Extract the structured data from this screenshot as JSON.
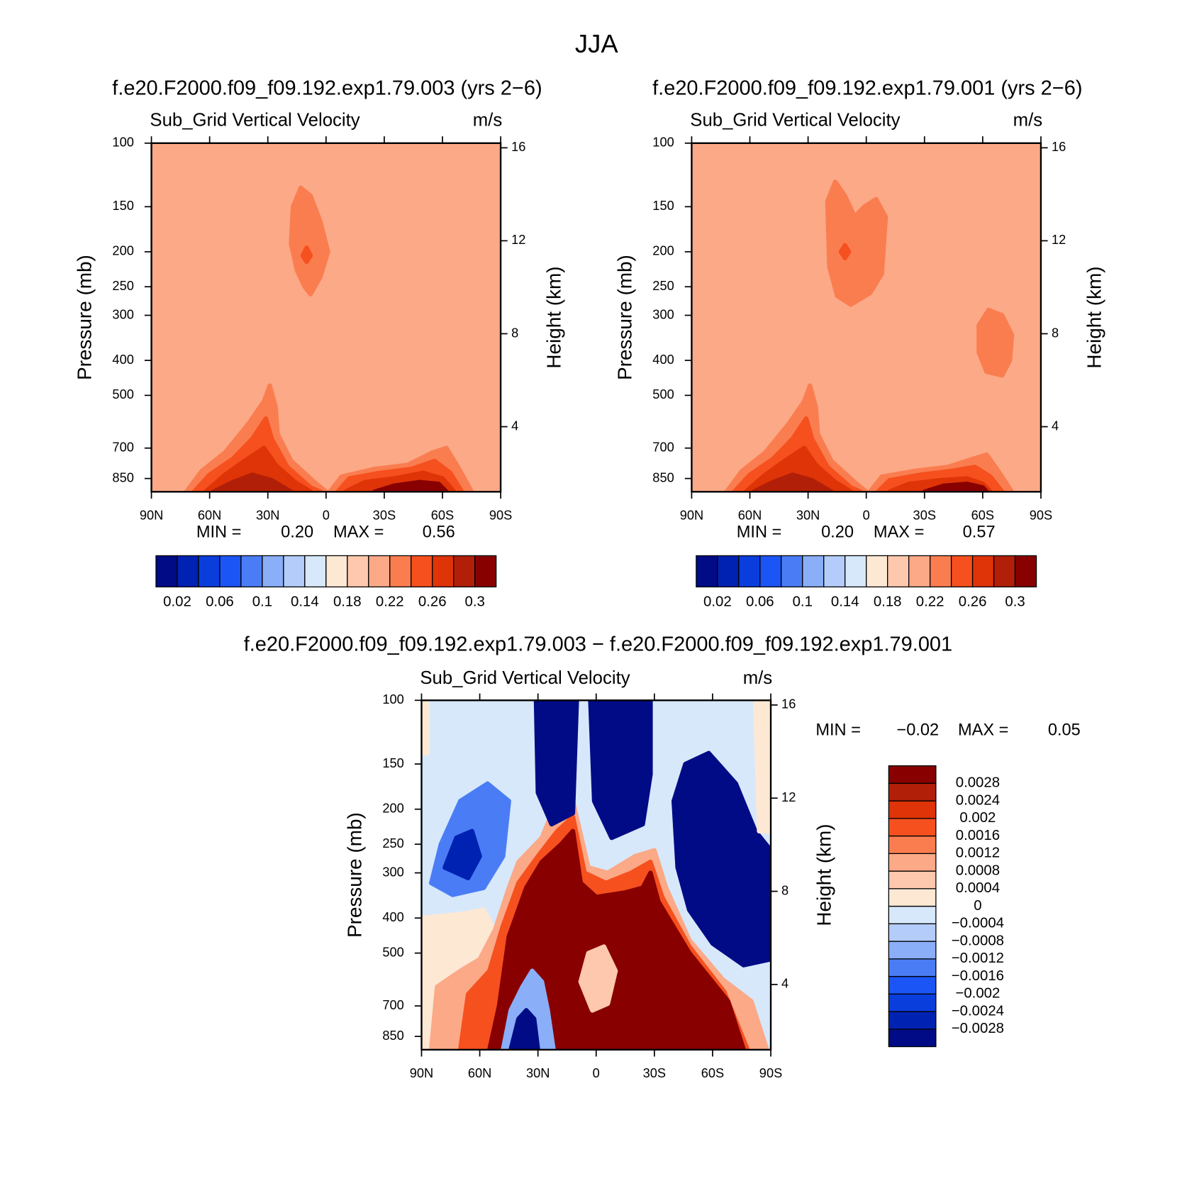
{
  "title": "JJA",
  "chart_data": [
    {
      "type": "contour",
      "title": "f.e20.F2000.f09_f09.192.exp1.79.003 (yrs 2−6)",
      "subtitle": "Sub_Grid Vertical Velocity",
      "units": "m/s",
      "ylabel": "Pressure (mb)",
      "y2label": "Height (km)",
      "xlim": [
        90,
        -90
      ],
      "xticks": [
        {
          "value": 90,
          "label": "90N"
        },
        {
          "value": 60,
          "label": "60N"
        },
        {
          "value": 30,
          "label": "30N"
        },
        0,
        {
          "value": -30,
          "label": "30S"
        },
        {
          "value": -60,
          "label": "60S"
        },
        {
          "value": -90,
          "label": "90S"
        }
      ],
      "ylim": [
        925,
        100
      ],
      "ylog": true,
      "yticks": [
        100,
        150,
        200,
        250,
        300,
        400,
        500,
        700,
        850
      ],
      "y2lim": [
        1.2,
        16.2
      ],
      "y2ticks": [
        4,
        8,
        12,
        16
      ],
      "min_label": "MIN =",
      "min": {
        "value": 0.2,
        "label": "0.20"
      },
      "max_label": "MAX =",
      "max": 0.56,
      "colorbar": {
        "orientation": "horizontal",
        "levels": [
          0.02,
          null,
          0.06,
          null,
          {
            "value": 0.1,
            "label": "0.1"
          },
          null,
          0.14,
          null,
          0.18,
          null,
          0.22,
          null,
          0.26,
          null,
          {
            "value": 0.3,
            "label": "0.3"
          }
        ],
        "colors": [
          "#010b86",
          "#0022b2",
          "#0a3edc",
          "#1c55f5",
          "#4a7df5",
          "#8aaef8",
          "#b4ccfa",
          "#d7e8fb",
          "#fde8d4",
          "#fdc8ad",
          "#fba987",
          "#fa7d50",
          "#f5501e",
          "#de3407",
          "#b11f08",
          "#880000"
        ]
      }
    },
    {
      "type": "contour",
      "title": "f.e20.F2000.f09_f09.192.exp1.79.001 (yrs 2−6)",
      "subtitle": "Sub_Grid Vertical Velocity",
      "units": "m/s",
      "ylabel": "Pressure (mb)",
      "y2label": "Height (km)",
      "xlim": [
        90,
        -90
      ],
      "xticks": [
        {
          "value": 90,
          "label": "90N"
        },
        {
          "value": 60,
          "label": "60N"
        },
        {
          "value": 30,
          "label": "30N"
        },
        0,
        {
          "value": -30,
          "label": "30S"
        },
        {
          "value": -60,
          "label": "60S"
        },
        {
          "value": -90,
          "label": "90S"
        }
      ],
      "ylim": [
        925,
        100
      ],
      "ylog": true,
      "yticks": [
        100,
        150,
        200,
        250,
        300,
        400,
        500,
        700,
        850
      ],
      "y2lim": [
        1.2,
        16.2
      ],
      "y2ticks": [
        4,
        8,
        12,
        16
      ],
      "min_label": "MIN =",
      "min": {
        "value": 0.2,
        "label": "0.20"
      },
      "max_label": "MAX =",
      "max": 0.57,
      "colorbar": {
        "orientation": "horizontal",
        "levels": [
          0.02,
          null,
          0.06,
          null,
          {
            "value": 0.1,
            "label": "0.1"
          },
          null,
          0.14,
          null,
          0.18,
          null,
          0.22,
          null,
          0.26,
          null,
          {
            "value": 0.3,
            "label": "0.3"
          }
        ],
        "colors": [
          "#010b86",
          "#0022b2",
          "#0a3edc",
          "#1c55f5",
          "#4a7df5",
          "#8aaef8",
          "#b4ccfa",
          "#d7e8fb",
          "#fde8d4",
          "#fdc8ad",
          "#fba987",
          "#fa7d50",
          "#f5501e",
          "#de3407",
          "#b11f08",
          "#880000"
        ]
      }
    },
    {
      "type": "contour",
      "title": "f.e20.F2000.f09_f09.192.exp1.79.003 − f.e20.F2000.f09_f09.192.exp1.79.001",
      "subtitle": "Sub_Grid Vertical Velocity",
      "units": "m/s",
      "ylabel": "Pressure (mb)",
      "y2label": "Height (km)",
      "xlim": [
        90,
        -90
      ],
      "xticks": [
        {
          "value": 90,
          "label": "90N"
        },
        {
          "value": 60,
          "label": "60N"
        },
        {
          "value": 30,
          "label": "30N"
        },
        0,
        {
          "value": -30,
          "label": "30S"
        },
        {
          "value": -60,
          "label": "60S"
        },
        {
          "value": -90,
          "label": "90S"
        }
      ],
      "ylim": [
        925,
        100
      ],
      "ylog": true,
      "yticks": [
        100,
        150,
        200,
        250,
        300,
        400,
        500,
        700,
        850
      ],
      "y2lim": [
        1.2,
        16.2
      ],
      "y2ticks": [
        4,
        8,
        12,
        16
      ],
      "min_label": "MIN =",
      "min": {
        "value": -0.02,
        "label": "−0.02"
      },
      "max_label": "MAX =",
      "max": 0.05,
      "colorbar": {
        "orientation": "vertical",
        "levels": [
          {
            "value": -0.0028,
            "label": "−0.0028"
          },
          {
            "value": -0.0024,
            "label": "−0.0024"
          },
          {
            "value": -0.002,
            "label": "−0.002"
          },
          {
            "value": -0.0016,
            "label": "−0.0016"
          },
          {
            "value": -0.0012,
            "label": "−0.0012"
          },
          {
            "value": -0.0008,
            "label": "−0.0008"
          },
          {
            "value": -0.0004,
            "label": "−0.0004"
          },
          0,
          0.0004,
          0.0008,
          0.0012,
          0.0016,
          0.002,
          0.0024,
          0.0028
        ],
        "colors": [
          "#010b86",
          "#0022b2",
          "#0a3edc",
          "#1c55f5",
          "#4a7df5",
          "#8aaef8",
          "#b4ccfa",
          "#d7e8fb",
          "#fde8d4",
          "#fdc8ad",
          "#fba987",
          "#fa7d50",
          "#f5501e",
          "#de3407",
          "#b11f08",
          "#880000"
        ]
      }
    }
  ]
}
